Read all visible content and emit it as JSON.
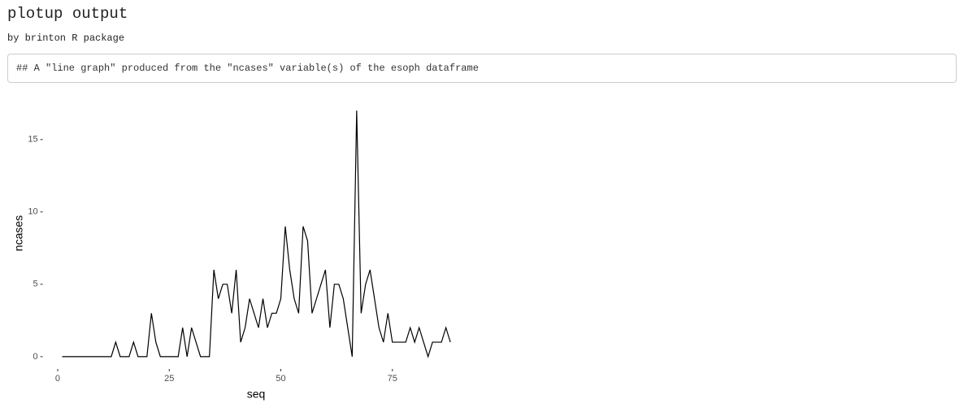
{
  "header": {
    "title": "plotup output",
    "subtitle": "by brinton R package",
    "code": "## A \"line graph\" produced from the \"ncases\" variable(s) of the esoph dataframe"
  },
  "chart_data": {
    "type": "line",
    "xlabel": "seq",
    "ylabel": "ncases",
    "color": "#000000",
    "x": [
      1,
      2,
      3,
      4,
      5,
      6,
      7,
      8,
      9,
      10,
      11,
      12,
      13,
      14,
      15,
      16,
      17,
      18,
      19,
      20,
      21,
      22,
      23,
      24,
      25,
      26,
      27,
      28,
      29,
      30,
      31,
      32,
      33,
      34,
      35,
      36,
      37,
      38,
      39,
      40,
      41,
      42,
      43,
      44,
      45,
      46,
      47,
      48,
      49,
      50,
      51,
      52,
      53,
      54,
      55,
      56,
      57,
      58,
      59,
      60,
      61,
      62,
      63,
      64,
      65,
      66,
      67,
      68,
      69,
      70,
      71,
      72,
      73,
      74,
      75,
      76,
      77,
      78,
      79,
      80,
      81,
      82,
      83,
      84,
      85,
      86,
      87,
      88
    ],
    "values": [
      0,
      0,
      0,
      0,
      0,
      0,
      0,
      0,
      0,
      0,
      0,
      0,
      1,
      0,
      0,
      0,
      1,
      0,
      0,
      0,
      3,
      1,
      0,
      0,
      0,
      0,
      0,
      2,
      0,
      2,
      1,
      0,
      0,
      0,
      6,
      4,
      5,
      5,
      3,
      6,
      1,
      2,
      4,
      3,
      2,
      4,
      2,
      3,
      3,
      4,
      9,
      6,
      4,
      3,
      9,
      8,
      3,
      4,
      5,
      6,
      2,
      5,
      5,
      4,
      2,
      0,
      17,
      3,
      5,
      6,
      4,
      2,
      1,
      3,
      1,
      1,
      1,
      1,
      2,
      1,
      2,
      1,
      0,
      1,
      1,
      1,
      2,
      1
    ],
    "xlim": [
      -3.35,
      92.35
    ],
    "ylim": [
      -0.85,
      17.85
    ],
    "xticks": [
      0,
      25,
      50,
      75
    ],
    "yticks": [
      0,
      5,
      10,
      15
    ]
  }
}
